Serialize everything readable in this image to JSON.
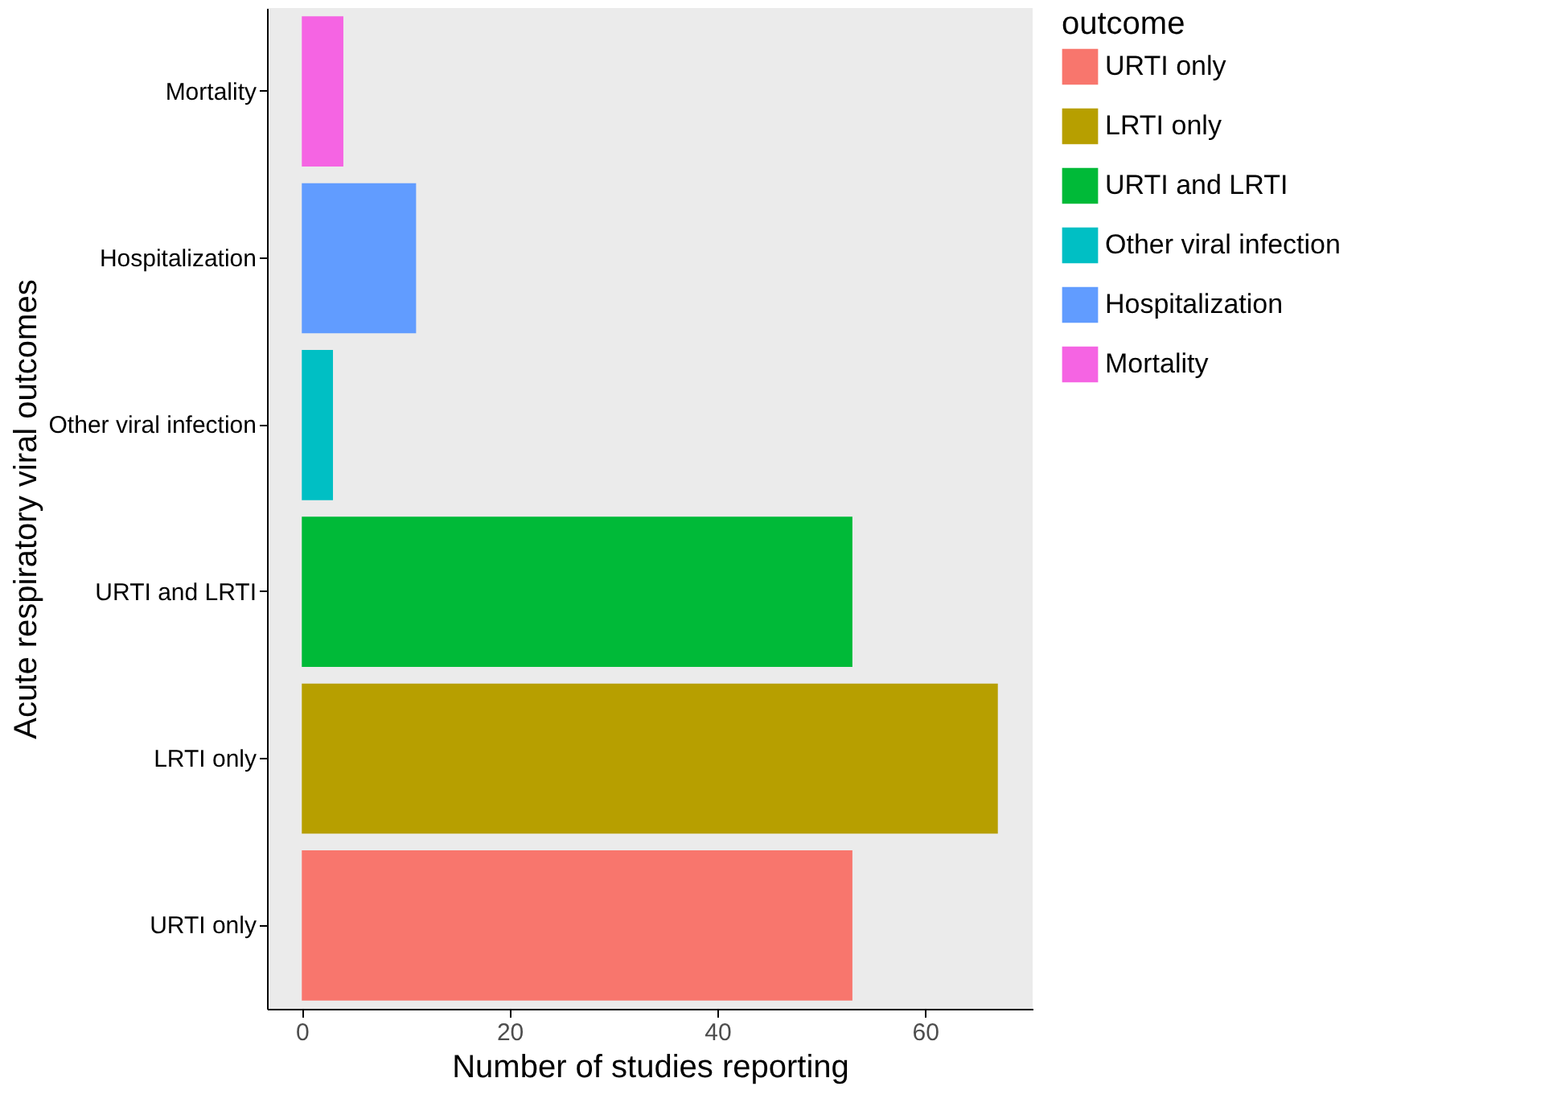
{
  "chart_data": {
    "type": "bar",
    "orientation": "horizontal",
    "xlabel": "Number of studies reporting",
    "ylabel": "Acute respiratory viral outcomes",
    "legend_title": "outcome",
    "categories": [
      "Mortality",
      "Hospitalization",
      "Other viral infection",
      "URTI and LRTI",
      "LRTI only",
      "URTI only"
    ],
    "series": [
      {
        "name": "URTI only",
        "color": "#f8766d",
        "values": [
          null,
          null,
          null,
          null,
          null,
          53
        ]
      },
      {
        "name": "LRTI only",
        "color": "#b79f00",
        "values": [
          null,
          null,
          null,
          null,
          67,
          null
        ]
      },
      {
        "name": "URTI and LRTI",
        "color": "#00ba38",
        "values": [
          null,
          null,
          null,
          53,
          null,
          null
        ]
      },
      {
        "name": "Other viral infection",
        "color": "#00bfc4",
        "values": [
          null,
          null,
          3,
          null,
          null,
          null
        ]
      },
      {
        "name": "Hospitalization",
        "color": "#619cff",
        "values": [
          null,
          11,
          null,
          null,
          null,
          null
        ]
      },
      {
        "name": "Mortality",
        "color": "#f564e3",
        "values": [
          4,
          null,
          null,
          null,
          null,
          null
        ]
      }
    ],
    "xlim": [
      -3.35,
      70.35
    ],
    "xticks": [
      0,
      20,
      40,
      60
    ],
    "grid": false,
    "legend": "right"
  }
}
